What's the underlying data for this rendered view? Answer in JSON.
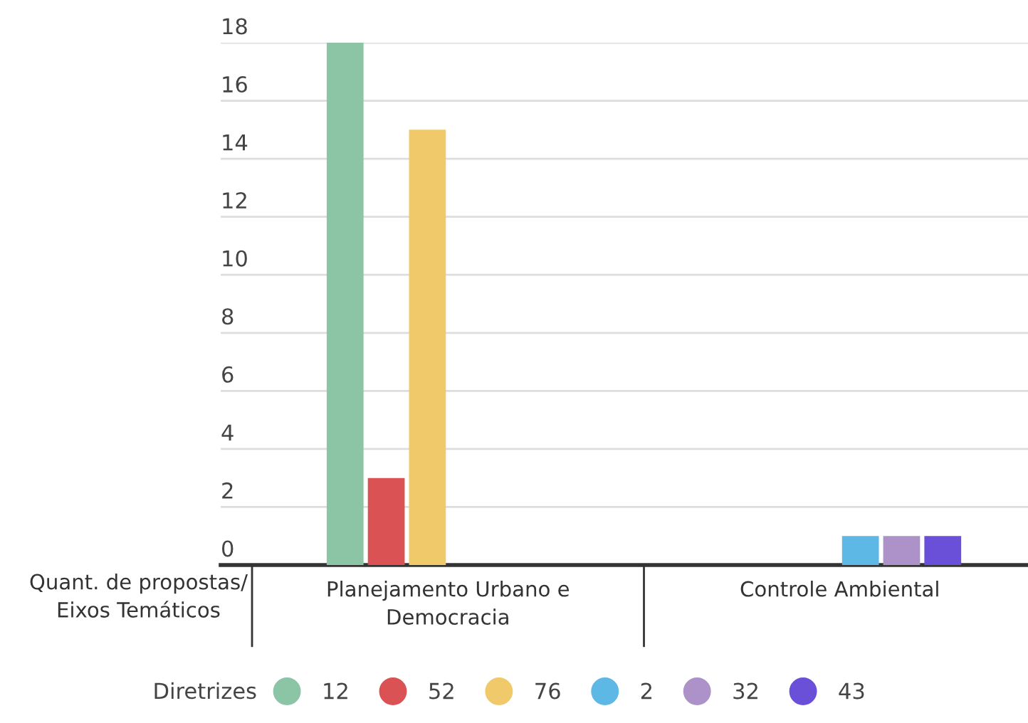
{
  "chart_data": {
    "type": "bar",
    "xlabel": "Quant. de propostas/\nEixos Temáticos",
    "legend_title": "Diretrizes",
    "categories": [
      "Planejamento Urbano e\nDemocracia",
      "Controle Ambiental"
    ],
    "series": [
      {
        "name": "12",
        "color": "#8cc4a6",
        "values": [
          18,
          null
        ]
      },
      {
        "name": "52",
        "color": "#db5254",
        "values": [
          3,
          null
        ]
      },
      {
        "name": "76",
        "color": "#efc96a",
        "values": [
          15,
          null
        ]
      },
      {
        "name": "2",
        "color": "#5db8e6",
        "values": [
          null,
          1
        ]
      },
      {
        "name": "32",
        "color": "#ad92c9",
        "values": [
          null,
          1
        ]
      },
      {
        "name": "43",
        "color": "#6a50d8",
        "values": [
          null,
          1
        ]
      }
    ],
    "ylim": [
      0,
      18
    ],
    "yticks": [
      0,
      2,
      4,
      6,
      8,
      10,
      12,
      14,
      16,
      18
    ],
    "grid": "y",
    "legend": "bottom"
  }
}
